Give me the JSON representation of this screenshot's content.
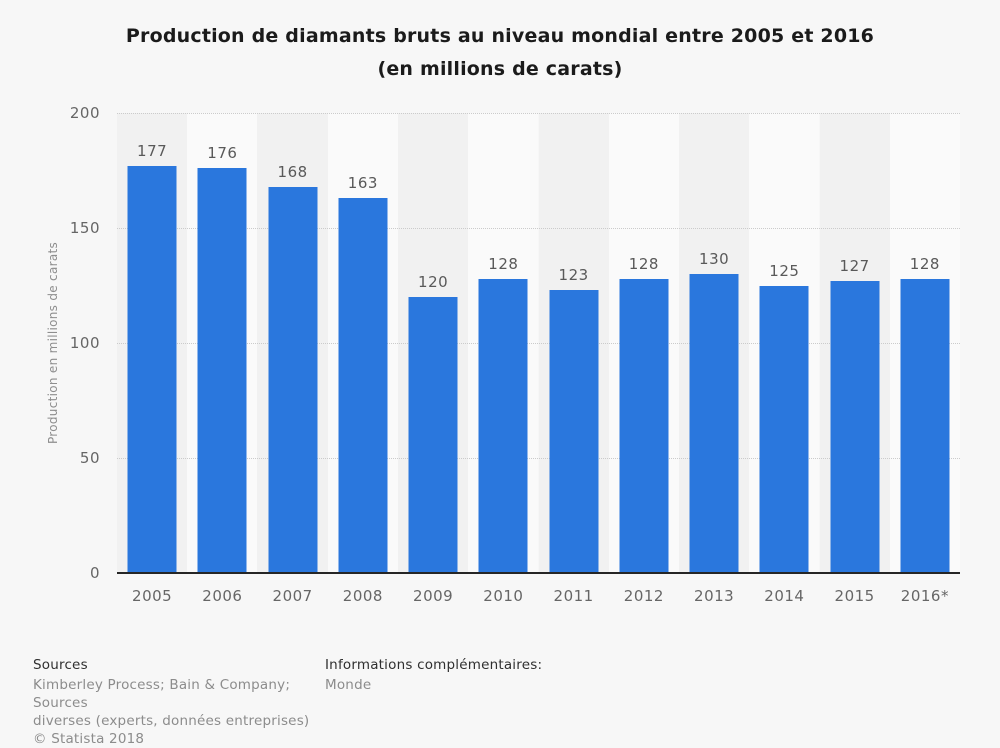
{
  "header": {
    "title_line1": "Production de diamants bruts au niveau mondial entre 2005 et 2016",
    "title_line2": "(en millions de carats)"
  },
  "chart_data": {
    "type": "bar",
    "title": "Production de diamants bruts au niveau mondial entre 2005 et 2016 (en millions de carats)",
    "categories": [
      "2005",
      "2006",
      "2007",
      "2008",
      "2009",
      "2010",
      "2011",
      "2012",
      "2013",
      "2014",
      "2015",
      "2016*"
    ],
    "values": [
      177,
      176,
      168,
      163,
      120,
      128,
      123,
      128,
      130,
      125,
      127,
      128
    ],
    "xlabel": "",
    "ylabel": "Production en millions de carats",
    "ylim": [
      0,
      200
    ],
    "yticks": [
      0,
      50,
      100,
      150,
      200
    ],
    "grid": "horizontal-dotted",
    "legend": "none",
    "value_labels": true,
    "bar_color": "#2a77dd",
    "band_colors": [
      "#f1f1f1",
      "#fafafa"
    ],
    "axis_line_color": "#262626"
  },
  "footer": {
    "sources_heading": "Sources",
    "sources_lines": [
      "Kimberley Process; Bain & Company; Sources",
      "diverses (experts, données entreprises)"
    ],
    "copyright": "© Statista 2018",
    "info_heading": "Informations complémentaires:",
    "info_value": "Monde"
  }
}
